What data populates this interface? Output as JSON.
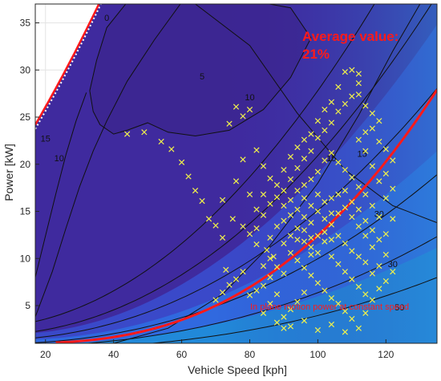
{
  "chart_data": {
    "type": "scatter",
    "title": "",
    "xlabel": "Vehicle Speed [kph]",
    "ylabel": "Power [kW]",
    "xlim": [
      17,
      135
    ],
    "ylim": [
      1,
      37
    ],
    "xticks": [
      20,
      40,
      60,
      80,
      100,
      120
    ],
    "yticks": [
      5,
      10,
      15,
      20,
      25,
      30,
      35
    ],
    "grid": true,
    "background": "efficiency heatmap (parula colormap)",
    "contour_labels": [
      "0",
      "5",
      "10",
      "10",
      "15",
      "15",
      "15",
      "30",
      "30",
      "50"
    ],
    "annotations": {
      "average_value_line1": "Average value:",
      "average_value_line2": "21%",
      "constant_speed_label": "In plane motion power at constant speed"
    },
    "colors": {
      "scatter": "#f2f24a",
      "constant_speed_curve": "#ff1a1a",
      "annotation_text": "#ff1a1a",
      "max_power_curve": "#ff1a1a"
    },
    "scatter_series": {
      "name": "",
      "marker": "x",
      "points": [
        [
          44,
          23.2
        ],
        [
          49,
          23.4
        ],
        [
          54,
          22.4
        ],
        [
          57,
          21.6
        ],
        [
          60,
          20.2
        ],
        [
          62,
          18.7
        ],
        [
          64,
          17.2
        ],
        [
          66,
          16.1
        ],
        [
          68,
          14.2
        ],
        [
          70,
          13.5
        ],
        [
          72,
          12.2
        ],
        [
          74,
          24.3
        ],
        [
          76,
          26.1
        ],
        [
          78,
          25.1
        ],
        [
          80,
          25.8
        ],
        [
          82,
          21.5
        ],
        [
          84,
          19.8
        ],
        [
          86,
          18.5
        ],
        [
          78,
          20.5
        ],
        [
          76,
          18.2
        ],
        [
          72,
          16.2
        ],
        [
          75,
          14.2
        ],
        [
          78,
          13.4
        ],
        [
          80,
          12.6
        ],
        [
          82,
          13.2
        ],
        [
          84,
          14.6
        ],
        [
          86,
          12.2
        ],
        [
          82,
          11.5
        ],
        [
          85,
          10.9
        ],
        [
          87,
          10.2
        ],
        [
          88,
          9.1
        ],
        [
          90,
          8.4
        ],
        [
          86,
          8.0
        ],
        [
          84,
          7.1
        ],
        [
          82,
          6.6
        ],
        [
          80,
          6.1
        ],
        [
          78,
          8.6
        ],
        [
          76,
          7.8
        ],
        [
          74,
          7.2
        ],
        [
          72,
          6.4
        ],
        [
          70,
          5.6
        ],
        [
          73,
          8.8
        ],
        [
          88,
          16.5
        ],
        [
          90,
          15.6
        ],
        [
          92,
          16.2
        ],
        [
          94,
          15.2
        ],
        [
          96,
          14.4
        ],
        [
          98,
          13.8
        ],
        [
          90,
          17.2
        ],
        [
          92,
          18.4
        ],
        [
          94,
          19.6
        ],
        [
          96,
          20.6
        ],
        [
          98,
          21.4
        ],
        [
          100,
          22.8
        ],
        [
          102,
          23.6
        ],
        [
          104,
          24.4
        ],
        [
          106,
          25.6
        ],
        [
          108,
          26.4
        ],
        [
          110,
          27.2
        ],
        [
          112,
          28.6
        ],
        [
          108,
          29.8
        ],
        [
          110,
          30.0
        ],
        [
          112,
          29.6
        ],
        [
          106,
          28.2
        ],
        [
          104,
          26.6
        ],
        [
          102,
          25.8
        ],
        [
          100,
          24.6
        ],
        [
          98,
          23.2
        ],
        [
          96,
          22.6
        ],
        [
          94,
          21.8
        ],
        [
          92,
          20.8
        ],
        [
          90,
          19.4
        ],
        [
          94,
          17.2
        ],
        [
          96,
          16.4
        ],
        [
          98,
          15.6
        ],
        [
          100,
          15.0
        ],
        [
          102,
          14.2
        ],
        [
          104,
          13.6
        ],
        [
          106,
          12.4
        ],
        [
          108,
          11.6
        ],
        [
          110,
          10.8
        ],
        [
          112,
          10.2
        ],
        [
          114,
          9.6
        ],
        [
          116,
          8.4
        ],
        [
          118,
          9.2
        ],
        [
          120,
          10.4
        ],
        [
          120,
          12.6
        ],
        [
          118,
          14.4
        ],
        [
          116,
          15.6
        ],
        [
          114,
          16.8
        ],
        [
          112,
          17.6
        ],
        [
          110,
          18.6
        ],
        [
          108,
          19.4
        ],
        [
          106,
          20.2
        ],
        [
          104,
          21.2
        ],
        [
          102,
          20.4
        ],
        [
          100,
          19.2
        ],
        [
          98,
          18.4
        ],
        [
          96,
          17.8
        ],
        [
          94,
          13.2
        ],
        [
          92,
          12.4
        ],
        [
          90,
          11.6
        ],
        [
          92,
          10.6
        ],
        [
          94,
          9.8
        ],
        [
          96,
          9.0
        ],
        [
          98,
          8.2
        ],
        [
          100,
          7.4
        ],
        [
          102,
          6.6
        ],
        [
          104,
          5.8
        ],
        [
          106,
          5.2
        ],
        [
          108,
          4.4
        ],
        [
          110,
          3.6
        ],
        [
          96,
          6.4
        ],
        [
          94,
          5.4
        ],
        [
          92,
          4.6
        ],
        [
          90,
          3.8
        ],
        [
          88,
          3.2
        ],
        [
          90,
          2.6
        ],
        [
          92,
          2.8
        ],
        [
          96,
          3.4
        ],
        [
          100,
          2.4
        ],
        [
          104,
          3.0
        ],
        [
          108,
          2.2
        ],
        [
          112,
          2.6
        ],
        [
          114,
          4.2
        ],
        [
          116,
          5.6
        ],
        [
          118,
          6.8
        ],
        [
          120,
          7.6
        ],
        [
          122,
          8.6
        ],
        [
          122,
          14.2
        ],
        [
          120,
          16.4
        ],
        [
          118,
          18.2
        ],
        [
          116,
          19.8
        ],
        [
          114,
          21.4
        ],
        [
          112,
          22.6
        ],
        [
          114,
          23.4
        ],
        [
          116,
          23.8
        ],
        [
          118,
          22.4
        ],
        [
          120,
          21.6
        ],
        [
          120,
          19.0
        ],
        [
          122,
          17.4
        ],
        [
          122,
          20.4
        ],
        [
          118,
          24.6
        ],
        [
          116,
          25.4
        ],
        [
          114,
          26.2
        ],
        [
          112,
          27.4
        ],
        [
          104,
          16.4
        ],
        [
          106,
          16.8
        ],
        [
          108,
          17.2
        ],
        [
          110,
          16.0
        ],
        [
          112,
          15.2
        ],
        [
          114,
          14.0
        ],
        [
          116,
          13.0
        ],
        [
          118,
          12.0
        ],
        [
          116,
          11.2
        ],
        [
          114,
          12.4
        ],
        [
          112,
          13.4
        ],
        [
          110,
          14.4
        ],
        [
          108,
          15.4
        ],
        [
          106,
          14.8
        ],
        [
          104,
          14.8
        ],
        [
          102,
          16.0
        ],
        [
          100,
          16.8
        ],
        [
          98,
          11.2
        ],
        [
          96,
          11.8
        ],
        [
          94,
          12.0
        ],
        [
          92,
          14.6
        ],
        [
          90,
          14.0
        ],
        [
          88,
          13.4
        ],
        [
          86,
          15.8
        ],
        [
          88,
          17.8
        ],
        [
          84,
          16.8
        ],
        [
          82,
          15.2
        ],
        [
          80,
          16.8
        ],
        [
          98,
          10.4
        ],
        [
          100,
          10.6
        ],
        [
          102,
          11.8
        ],
        [
          104,
          10.2
        ],
        [
          106,
          9.4
        ],
        [
          108,
          8.6
        ],
        [
          110,
          7.8
        ],
        [
          112,
          7.0
        ],
        [
          114,
          6.2
        ],
        [
          100,
          12.4
        ],
        [
          102,
          12.8
        ],
        [
          104,
          12.0
        ],
        [
          96,
          13.0
        ],
        [
          98,
          12.2
        ],
        [
          86,
          10.0
        ],
        [
          84,
          9.2
        ],
        [
          88,
          6.2
        ],
        [
          86,
          5.2
        ],
        [
          84,
          4.2
        ]
      ]
    }
  }
}
